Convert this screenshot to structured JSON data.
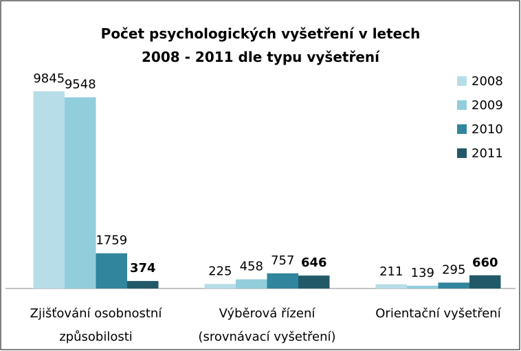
{
  "chart_data": {
    "type": "bar",
    "title": "Počet psychologických vyšetření v letech\n2008 - 2011 dle typu vyšetření",
    "categories": [
      "Zjišťování osobnostní\nzpůsobilosti",
      "Výběrová řízení\n(srovnávací vyšetření)",
      "Orientační vyšetření"
    ],
    "series": [
      {
        "name": "2008",
        "color": "#b7dde8",
        "values": [
          9845,
          225,
          211
        ]
      },
      {
        "name": "2009",
        "color": "#92cddc",
        "values": [
          9548,
          458,
          139
        ]
      },
      {
        "name": "2010",
        "color": "#31859c",
        "values": [
          1759,
          757,
          295
        ]
      },
      {
        "name": "2011",
        "color": "#215968",
        "values": [
          374,
          646,
          660
        ]
      }
    ],
    "legend": "right"
  }
}
